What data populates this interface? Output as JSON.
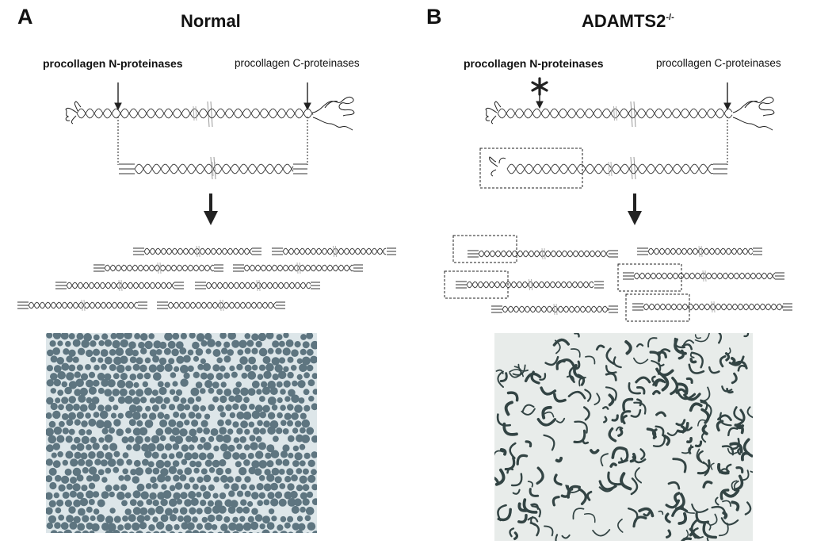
{
  "panels": [
    {
      "letter": "A",
      "title": "Normal",
      "title_superscript": "",
      "n_proteinase_label": "procollagen N-proteinases",
      "c_proteinase_label": "procollagen C-proteinases",
      "micrograph": "cross-section of regular round collagen fibrils"
    },
    {
      "letter": "B",
      "title": "ADAMTS2",
      "title_superscript": "-/-",
      "n_proteinase_label": "procollagen N-proteinases",
      "c_proteinase_label": "procollagen C-proteinases",
      "micrograph": "cross-section of irregular hieroglyphic collagen fibrils"
    }
  ],
  "colors": {
    "line": "#222222",
    "micrograph_a_bg": "#dde6e9",
    "micrograph_a_fibril": "#5e7580",
    "micrograph_b_bg": "#e8ecea",
    "micrograph_b_fibril": "#334444"
  },
  "icons": {
    "blocked_marker": "asterisk-icon",
    "cleavage_marker": "arrow-down-icon",
    "flow_marker": "thick-arrow-down-icon"
  }
}
